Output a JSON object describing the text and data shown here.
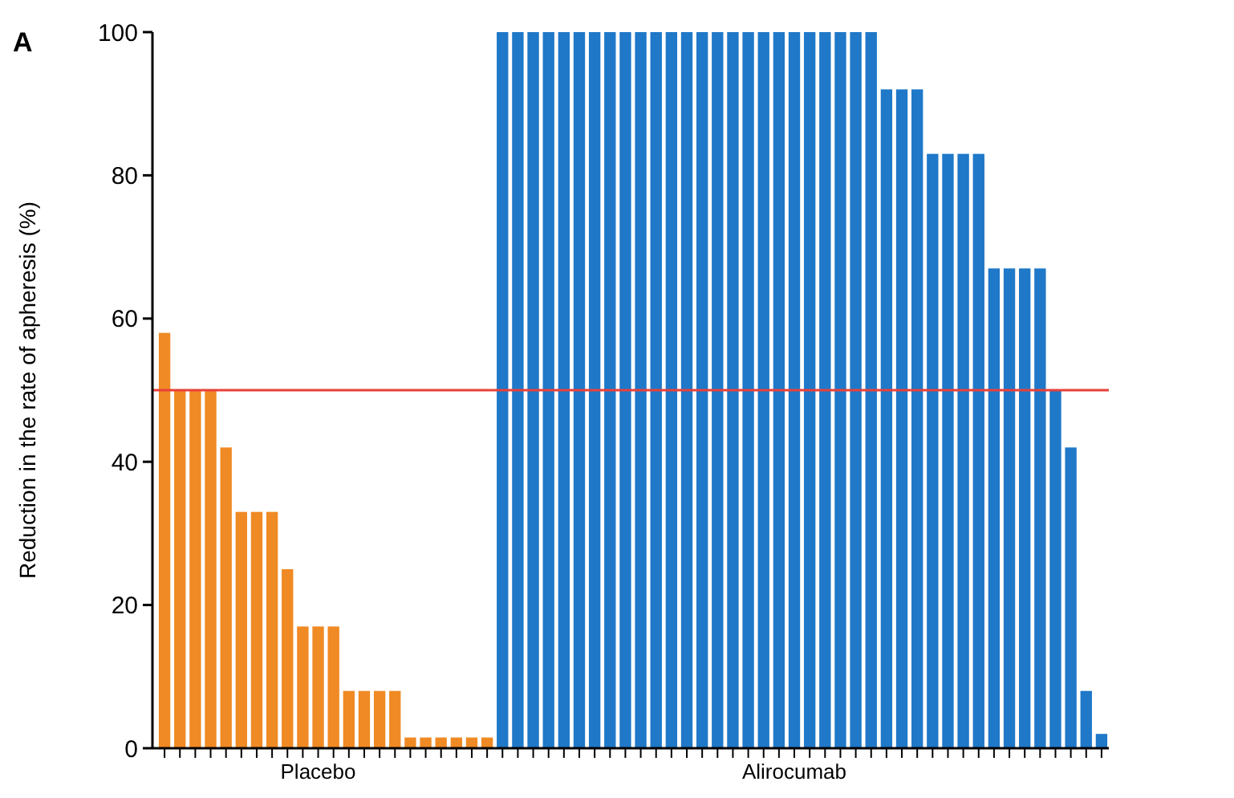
{
  "chart_data": {
    "type": "bar",
    "title": "A",
    "ylabel": "Reduction in the rate of apheresis (%)",
    "categories": [
      null,
      null,
      null,
      null,
      null,
      null,
      null,
      null,
      null,
      null,
      "Placebo",
      null,
      null,
      null,
      null,
      null,
      null,
      null,
      null,
      null,
      null,
      null,
      null,
      null,
      null,
      null,
      null,
      null,
      null,
      null,
      null,
      null,
      null,
      null,
      null,
      null,
      null,
      null,
      null,
      null,
      null,
      "Alirocumab",
      null,
      null,
      null,
      null,
      null,
      null,
      null,
      null,
      null,
      null,
      null,
      null,
      null,
      null,
      null,
      null,
      null,
      null,
      null,
      null
    ],
    "values": [
      58,
      50,
      50,
      50,
      42,
      33,
      33,
      33,
      25,
      17,
      17,
      17,
      8,
      8,
      8,
      8,
      1.5,
      1.5,
      1.5,
      1.5,
      1.5,
      1.5,
      100,
      100,
      100,
      100,
      100,
      100,
      100,
      100,
      100,
      100,
      100,
      100,
      100,
      100,
      100,
      100,
      100,
      100,
      100,
      100,
      100,
      100,
      100,
      100,
      100,
      92,
      92,
      92,
      83,
      83,
      83,
      83,
      67,
      67,
      67,
      67,
      50,
      42,
      8,
      2
    ],
    "colors": [
      "#f08a24",
      "#f08a24",
      "#f08a24",
      "#f08a24",
      "#f08a24",
      "#f08a24",
      "#f08a24",
      "#f08a24",
      "#f08a24",
      "#f08a24",
      "#f08a24",
      "#f08a24",
      "#f08a24",
      "#f08a24",
      "#f08a24",
      "#f08a24",
      "#f08a24",
      "#f08a24",
      "#f08a24",
      "#f08a24",
      "#f08a24",
      "#f08a24",
      "#1f78c8",
      "#1f78c8",
      "#1f78c8",
      "#1f78c8",
      "#1f78c8",
      "#1f78c8",
      "#1f78c8",
      "#1f78c8",
      "#1f78c8",
      "#1f78c8",
      "#1f78c8",
      "#1f78c8",
      "#1f78c8",
      "#1f78c8",
      "#1f78c8",
      "#1f78c8",
      "#1f78c8",
      "#1f78c8",
      "#1f78c8",
      "#1f78c8",
      "#1f78c8",
      "#1f78c8",
      "#1f78c8",
      "#1f78c8",
      "#1f78c8",
      "#1f78c8",
      "#1f78c8",
      "#1f78c8",
      "#1f78c8",
      "#1f78c8",
      "#1f78c8",
      "#1f78c8",
      "#1f78c8",
      "#1f78c8",
      "#1f78c8",
      "#1f78c8",
      "#1f78c8",
      "#1f78c8",
      "#1f78c8",
      "#1f78c8"
    ],
    "ylim": [
      0,
      100
    ],
    "yticks": [
      0,
      20,
      40,
      60,
      80,
      100
    ],
    "ref_lines": [
      {
        "axis": "y",
        "value": 50,
        "color": "#e8413a"
      }
    ]
  }
}
